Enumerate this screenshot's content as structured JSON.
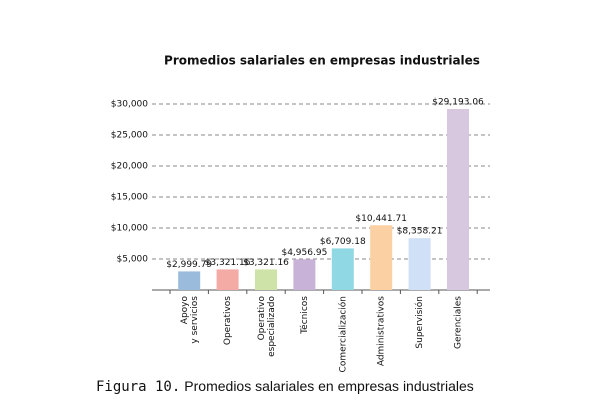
{
  "chart_data": {
    "type": "bar",
    "title": "Promedios salariales en empresas industriales",
    "categories": [
      "Apoyo y servicios",
      "Operativos",
      "Operativo especializado",
      "Técnicos",
      "Comercialización",
      "Administrativos",
      "Supervisión",
      "Gerenciales"
    ],
    "values": [
      2999.79,
      3321.16,
      3321.16,
      4956.95,
      6709.18,
      10441.71,
      8358.21,
      29193.06
    ],
    "value_labels": [
      "$2,999.79",
      "$3,321.16",
      "$3,321.16",
      "$4,956.95",
      "$6,709.18",
      "$10,441.71",
      "$8,358.21",
      "$29,193.06"
    ],
    "colors": [
      "#9bbbdc",
      "#f4aaa5",
      "#cde3a8",
      "#c9b2d8",
      "#8fd8e4",
      "#fbd0a3",
      "#cfe0f7",
      "#d7c8e0"
    ],
    "ylim": [
      0,
      30000
    ],
    "yticks": [
      {
        "value": 5000,
        "label": "$5,000"
      },
      {
        "value": 10000,
        "label": "$10,000"
      },
      {
        "value": 15000,
        "label": "$15,000"
      },
      {
        "value": 20000,
        "label": "$20,000"
      },
      {
        "value": 25000,
        "label": "$25,000"
      },
      {
        "value": 30000,
        "label": "$30,000"
      }
    ],
    "grid": true,
    "figure_label": "Figura 10.",
    "caption": "Promedios salariales en empresas industriales"
  }
}
